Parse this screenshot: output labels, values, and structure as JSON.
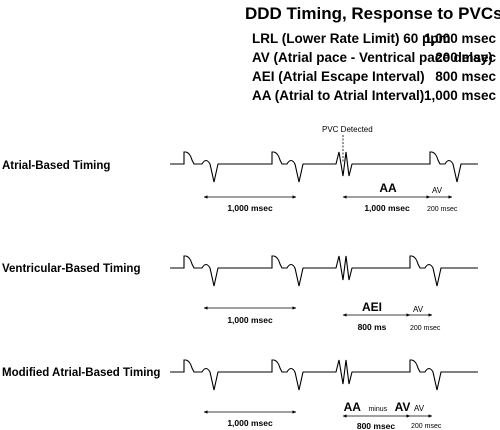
{
  "title": "DDD Timing, Response to PVCs",
  "params": [
    {
      "label": "LRL (Lower Rate Limit) 60 ppm",
      "value": "1,000 msec"
    },
    {
      "label": "AV (Atrial pace - Ventrical pace delay)",
      "value": "200 msec"
    },
    {
      "label": "AEI (Atrial Escape Interval)",
      "value": "800 msec"
    },
    {
      "label": "AA (Atrial to Atrial Interval)",
      "value": "1,000 msec"
    }
  ],
  "pvc_label": "PVC Detected",
  "rows": [
    {
      "label": "Atrial-Based Timing",
      "first_interval": "1,000 msec",
      "second_interval": "1,000 msec",
      "interval_name": "AA",
      "interval_name_minus": "",
      "interval_name_tail": "",
      "av_label": "AV",
      "av_value": "200 msec"
    },
    {
      "label": "Ventricular-Based Timing",
      "first_interval": "1,000 msec",
      "second_interval": "800 ms",
      "interval_name": "AEI",
      "interval_name_minus": "",
      "interval_name_tail": "",
      "av_label": "AV",
      "av_value": "200 msec"
    },
    {
      "label": "Modified Atrial-Based Timing",
      "first_interval": "1,000 msec",
      "second_interval": "800 msec",
      "interval_name": "AA",
      "interval_name_minus": "minus",
      "interval_name_tail": "AV",
      "av_label": "AV",
      "av_value": "200 msec"
    }
  ]
}
